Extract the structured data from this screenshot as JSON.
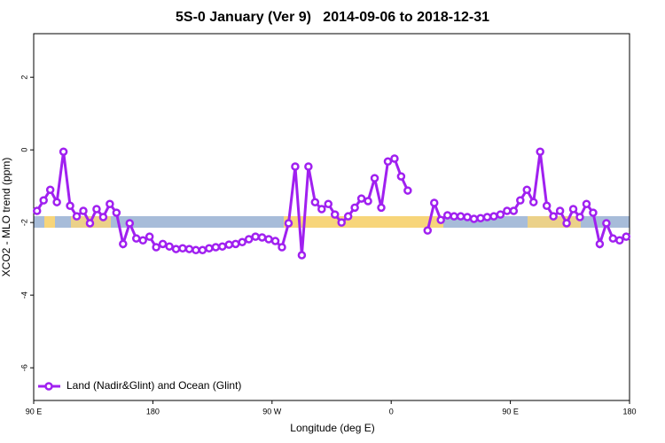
{
  "chart_data": {
    "type": "line",
    "title": "5S-0 January (Ver 9)   2014-09-06 to 2018-12-31",
    "x_label": "Longitude (deg E)",
    "y_label": "XCO2 - MLO trend (ppm)",
    "x": [
      92.5,
      97.5,
      102.5,
      107.5,
      112.5,
      117.5,
      122.5,
      127.5,
      132.5,
      137.5,
      142.5,
      147.5,
      152.5,
      157.5,
      162.5,
      167.5,
      172.5,
      177.5,
      182.5,
      187.5,
      192.5,
      197.5,
      202.5,
      207.5,
      212.5,
      217.5,
      222.5,
      227.5,
      232.5,
      237.5,
      242.5,
      247.5,
      252.5,
      257.5,
      262.5,
      267.5,
      272.5,
      277.5,
      282.5,
      287.5,
      292.5,
      297.5,
      302.5,
      307.5,
      312.5,
      317.5,
      322.5,
      327.5,
      332.5,
      337.5,
      342.5,
      347.5,
      352.5,
      357.5,
      362.5,
      367.5,
      372.5,
      377.5,
      382.5,
      387.5,
      392.5,
      397.5,
      402.5,
      407.5,
      412.5,
      417.5,
      422.5,
      427.5,
      432.5,
      437.5,
      442.5,
      447.5,
      452.5,
      457.5,
      462.5,
      467.5,
      472.5,
      477.5,
      482.5,
      487.5,
      492.5,
      497.5,
      502.5,
      507.5,
      512.5,
      517.5,
      522.5,
      527.5,
      532.5,
      537.5
    ],
    "series": [
      {
        "name": "Land (Nadir&Glint) and Ocean (Glint)",
        "color": "#a020f0",
        "values": [
          -1.68,
          -1.39,
          -1.1,
          -1.44,
          -0.05,
          -1.54,
          -1.83,
          -1.68,
          -2.02,
          -1.63,
          -1.85,
          -1.49,
          -1.73,
          -2.59,
          -2.02,
          -2.44,
          -2.49,
          -2.39,
          -2.68,
          -2.59,
          -2.66,
          -2.73,
          -2.71,
          -2.73,
          -2.76,
          -2.76,
          -2.71,
          -2.68,
          -2.66,
          -2.61,
          -2.59,
          -2.54,
          -2.46,
          -2.39,
          -2.41,
          -2.46,
          -2.51,
          -2.68,
          -2.02,
          -0.46,
          -2.9,
          -0.46,
          -1.44,
          -1.63,
          -1.49,
          -1.78,
          -2.0,
          -1.83,
          -1.59,
          -1.34,
          -1.41,
          -0.78,
          -1.59,
          -0.32,
          -0.24,
          -0.73,
          -1.12,
          null,
          null,
          -2.22,
          -1.46,
          -1.93,
          -1.8,
          -1.83,
          -1.83,
          -1.85,
          -1.9,
          -1.88,
          -1.85,
          -1.83,
          -1.78,
          -1.68,
          -1.68,
          -1.39,
          -1.1,
          -1.44,
          -0.05,
          -1.54,
          -1.83,
          -1.68,
          -2.02,
          -1.63,
          -1.85,
          -1.49,
          -1.73,
          -2.59,
          -2.02,
          -2.44,
          -2.49,
          -2.39
        ]
      }
    ],
    "xlim": [
      90,
      540
    ],
    "xticks": [
      {
        "value": 90,
        "label": "90 E"
      },
      {
        "value": 180,
        "label": "180"
      },
      {
        "value": 270,
        "label": "90 W"
      },
      {
        "value": 360,
        "label": "0"
      },
      {
        "value": 450,
        "label": "90 E"
      },
      {
        "value": 540,
        "label": "180"
      }
    ],
    "ylim": [
      -6.9,
      3.2
    ],
    "yticks": [
      2,
      0,
      -2,
      -4,
      -6
    ],
    "legend": "bottom-left"
  }
}
